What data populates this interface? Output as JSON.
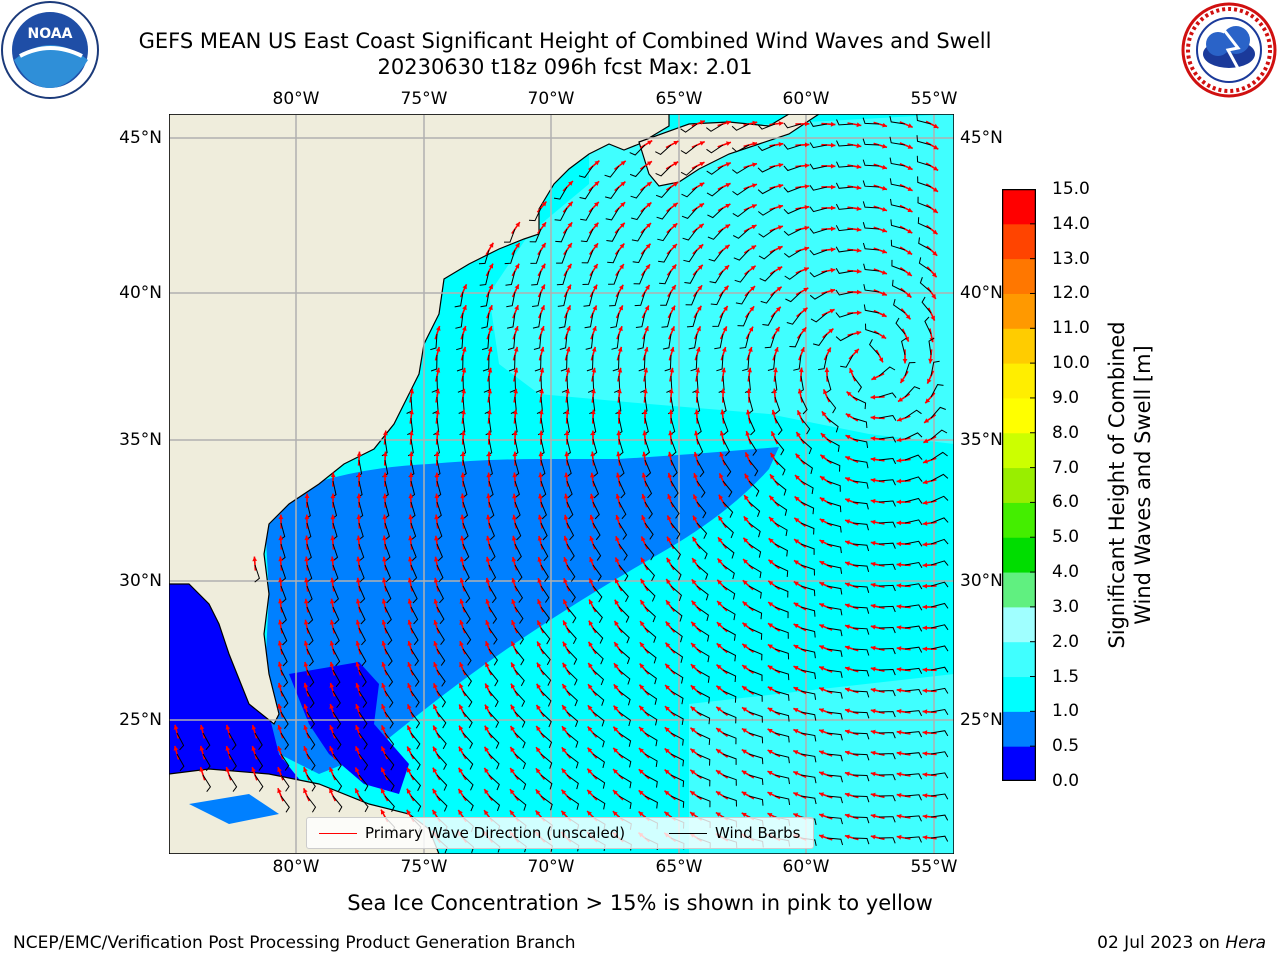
{
  "title_line1": "GEFS MEAN US East Coast Significant Height of Combined Wind Waves and Swell",
  "title_line2": "20230630 t18z 096h fcst   Max: 2.01",
  "map": {
    "lon_range": [
      -85,
      -54
    ],
    "lat_range": [
      20.5,
      46.5
    ],
    "lon_ticks": [
      "80°W",
      "75°W",
      "70°W",
      "65°W",
      "60°W",
      "55°W"
    ],
    "lat_ticks": [
      "45°N",
      "40°N",
      "35°N",
      "30°N",
      "25°N"
    ],
    "land_color": "#efeddc",
    "grid_color": "#b0b0b0",
    "arrow_color": "#ff0000",
    "barb_color": "#000000"
  },
  "legend": {
    "wave_direction_label": "Primary Wave Direction (unscaled)",
    "wind_barbs_label": "Wind Barbs"
  },
  "colorbar": {
    "title": "Significant Height of Combined Wind Waves and Swell [m]",
    "title_line1": "Significant Height of Combined",
    "title_line2": "Wind Waves and Swell [m]",
    "tick_labels": [
      "0.0",
      "0.5",
      "1.0",
      "1.5",
      "2.0",
      "3.0",
      "4.0",
      "5.0",
      "6.0",
      "7.0",
      "8.0",
      "9.0",
      "10.0",
      "11.0",
      "12.0",
      "13.0",
      "14.0",
      "15.0"
    ],
    "colors": [
      "#0000ff",
      "#0080ff",
      "#00ffff",
      "#40ffff",
      "#a0ffff",
      "#60f080",
      "#00dd00",
      "#44ee00",
      "#99ee00",
      "#ccff00",
      "#ffff00",
      "#ffee00",
      "#ffcc00",
      "#ff9900",
      "#ff7700",
      "#ff4400",
      "#ff0000"
    ]
  },
  "sea_ice_note": "Sea Ice Concentration > 15% is shown in pink to yellow",
  "credit_left": "NCEP/EMC/Verification Post Processing Product Generation Branch",
  "credit_right_date": "02 Jul 2023 on ",
  "credit_right_host": "Hera",
  "logos": {
    "noaa_text": "NOAA",
    "nws_text": "NATIONAL WEATHER SERVICE"
  }
}
